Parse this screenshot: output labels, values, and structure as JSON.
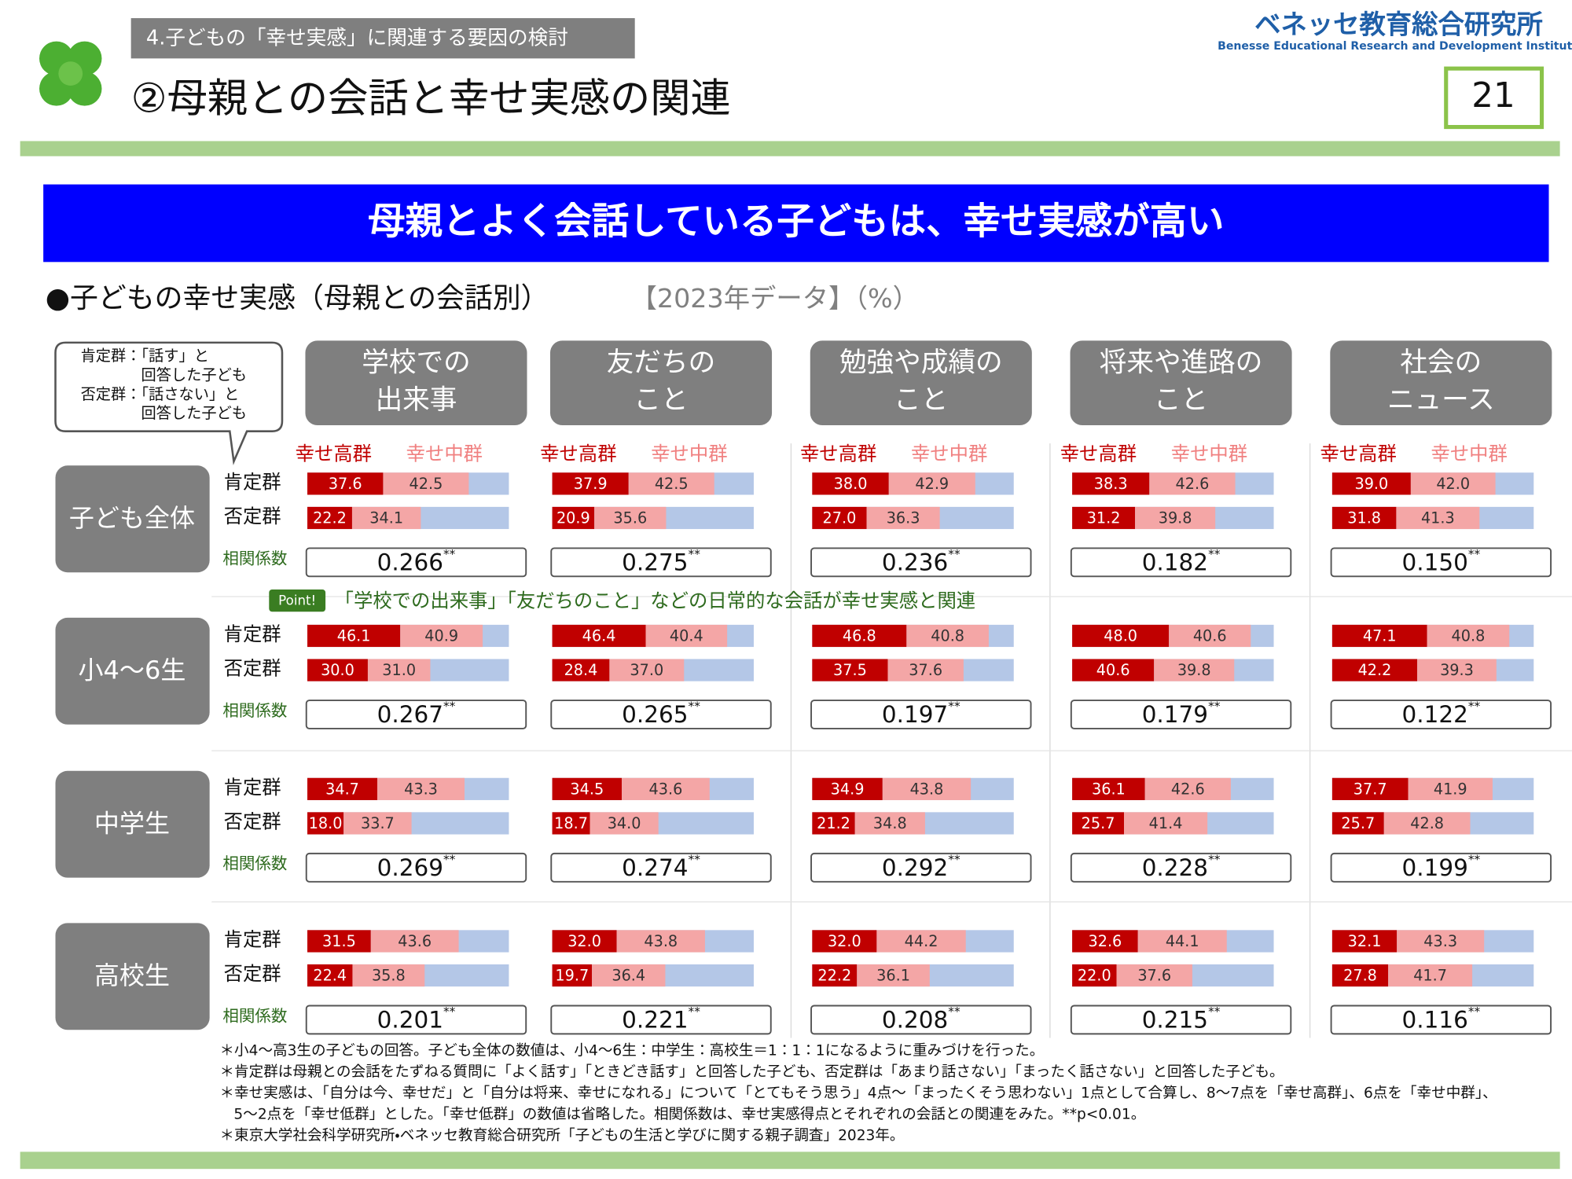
{
  "header": {
    "section": "4.子どもの「幸せ実感」に関連する要因の検討",
    "title": "②母親との会話と幸せ実感の関連",
    "logo": "ベネッセ教育総合研究所",
    "logo_en": "Benesse  Educational Research and Development Institute",
    "page": "21"
  },
  "banner": "母親とよく会話している子どもは、幸せ実感が高い",
  "chart_title": "●子どもの幸せ実感（母親との会話別）",
  "chart_subtitle": "【2023年データ】（%）",
  "bubble": [
    "肯定群：「話す」と",
    "回答した子ども",
    "否定群：「話さない」と",
    "回答した子ども"
  ],
  "topics": [
    [
      "学校での",
      "出来事"
    ],
    [
      "友だちの",
      "こと"
    ],
    [
      "勉強や成績の",
      "こと"
    ],
    [
      "将来や進路の",
      "こと"
    ],
    [
      "社会の",
      "ニュース"
    ]
  ],
  "series": [
    {
      "name": "幸せ高群",
      "color": "#c00000"
    },
    {
      "name": "幸せ中群",
      "color": "#f4a6a6"
    }
  ],
  "remainder_color": "#b4c7e7",
  "xlim": [
    0,
    100
  ],
  "row_labels": [
    "肯定群",
    "否定群"
  ],
  "corr_label": "相関係数",
  "point": {
    "tag": "Point!",
    "text": "「学校での出来事」「友だちのこと」などの日常的な会話が幸せ実感と関連"
  },
  "groups": [
    {
      "name": "子ども全体",
      "cells": [
        {
          "pos": [
            37.6,
            42.5
          ],
          "pos_labels": [
            "37.6",
            "42.5"
          ],
          "neg": [
            22.2,
            34.1
          ],
          "neg_labels": [
            "22.2",
            "34.1"
          ],
          "corr": "0.266",
          "sig": "**"
        },
        {
          "pos": [
            37.9,
            42.5
          ],
          "pos_labels": [
            "37.9",
            "42.5"
          ],
          "neg": [
            20.9,
            35.6
          ],
          "neg_labels": [
            "20.9",
            "35.6"
          ],
          "corr": "0.275",
          "sig": "**"
        },
        {
          "pos": [
            38.0,
            42.9
          ],
          "pos_labels": [
            "38.0",
            "42.9"
          ],
          "neg": [
            27.0,
            36.3
          ],
          "neg_labels": [
            "27.0",
            "36.3"
          ],
          "corr": "0.236",
          "sig": "**"
        },
        {
          "pos": [
            38.3,
            42.6
          ],
          "pos_labels": [
            "38.3",
            "42.6"
          ],
          "neg": [
            31.2,
            39.8
          ],
          "neg_labels": [
            "31.2",
            "39.8"
          ],
          "corr": "0.182",
          "sig": "**"
        },
        {
          "pos": [
            39.0,
            42.0
          ],
          "pos_labels": [
            "39.0",
            "42.0"
          ],
          "neg": [
            31.8,
            41.3
          ],
          "neg_labels": [
            "31.8",
            "41.3"
          ],
          "corr": "0.150",
          "sig": "**"
        }
      ]
    },
    {
      "name": "小4～6生",
      "cells": [
        {
          "pos": [
            46.1,
            40.9
          ],
          "pos_labels": [
            "46.1",
            "40.9"
          ],
          "neg": [
            30.0,
            31.0
          ],
          "neg_labels": [
            "30.0",
            "31.0"
          ],
          "corr": "0.267",
          "sig": "**"
        },
        {
          "pos": [
            46.4,
            40.4
          ],
          "pos_labels": [
            "46.4",
            "40.4"
          ],
          "neg": [
            28.4,
            37.0
          ],
          "neg_labels": [
            "28.4",
            "37.0"
          ],
          "corr": "0.265",
          "sig": "**"
        },
        {
          "pos": [
            46.8,
            40.8
          ],
          "pos_labels": [
            "46.8",
            "40.8"
          ],
          "neg": [
            37.5,
            37.6
          ],
          "neg_labels": [
            "37.5",
            "37.6"
          ],
          "corr": "0.197",
          "sig": "**"
        },
        {
          "pos": [
            48.0,
            40.6
          ],
          "pos_labels": [
            "48.0",
            "40.6"
          ],
          "neg": [
            40.6,
            39.8
          ],
          "neg_labels": [
            "40.6",
            "39.8"
          ],
          "corr": "0.179",
          "sig": "**"
        },
        {
          "pos": [
            47.1,
            40.8
          ],
          "pos_labels": [
            "47.1",
            "40.8"
          ],
          "neg": [
            42.2,
            39.3
          ],
          "neg_labels": [
            "42.2",
            "39.3"
          ],
          "corr": "0.122",
          "sig": "**"
        }
      ]
    },
    {
      "name": "中学生",
      "cells": [
        {
          "pos": [
            34.7,
            43.3
          ],
          "pos_labels": [
            "34.7",
            "43.3"
          ],
          "neg": [
            18.0,
            33.7
          ],
          "neg_labels": [
            "18.0",
            "33.7"
          ],
          "corr": "0.269",
          "sig": "**"
        },
        {
          "pos": [
            34.5,
            43.6
          ],
          "pos_labels": [
            "34.5",
            "43.6"
          ],
          "neg": [
            18.7,
            34.0
          ],
          "neg_labels": [
            "18.7",
            "34.0"
          ],
          "corr": "0.274",
          "sig": "**"
        },
        {
          "pos": [
            34.9,
            43.8
          ],
          "pos_labels": [
            "34.9",
            "43.8"
          ],
          "neg": [
            21.2,
            34.8
          ],
          "neg_labels": [
            "21.2",
            "34.8"
          ],
          "corr": "0.292",
          "sig": "**"
        },
        {
          "pos": [
            36.1,
            42.6
          ],
          "pos_labels": [
            "36.1",
            "42.6"
          ],
          "neg": [
            25.7,
            41.4
          ],
          "neg_labels": [
            "25.7",
            "41.4"
          ],
          "corr": "0.228",
          "sig": "**"
        },
        {
          "pos": [
            37.7,
            41.9
          ],
          "pos_labels": [
            "37.7",
            "41.9"
          ],
          "neg": [
            25.7,
            42.8
          ],
          "neg_labels": [
            "25.7",
            "42.8"
          ],
          "corr": "0.199",
          "sig": "**"
        }
      ]
    },
    {
      "name": "高校生",
      "cells": [
        {
          "pos": [
            31.5,
            43.6
          ],
          "pos_labels": [
            "31.5",
            "43.6"
          ],
          "neg": [
            22.4,
            35.8
          ],
          "neg_labels": [
            "22.4",
            "35.8"
          ],
          "corr": "0.201",
          "sig": "**"
        },
        {
          "pos": [
            32.0,
            43.8
          ],
          "pos_labels": [
            "32.0",
            "43.8"
          ],
          "neg": [
            19.7,
            36.4
          ],
          "neg_labels": [
            "19.7",
            "36.4"
          ],
          "corr": "0.221",
          "sig": "**"
        },
        {
          "pos": [
            32.0,
            44.2
          ],
          "pos_labels": [
            "32.0",
            "44.2"
          ],
          "neg": [
            22.2,
            36.1
          ],
          "neg_labels": [
            "22.2",
            "36.1"
          ],
          "corr": "0.208",
          "sig": "**"
        },
        {
          "pos": [
            32.6,
            44.1
          ],
          "pos_labels": [
            "32.6",
            "44.1"
          ],
          "neg": [
            22.0,
            37.6
          ],
          "neg_labels": [
            "22.0",
            "37.6"
          ],
          "corr": "0.215",
          "sig": "**"
        },
        {
          "pos": [
            32.1,
            43.3
          ],
          "pos_labels": [
            "32.1",
            "43.3"
          ],
          "neg": [
            27.8,
            41.7
          ],
          "neg_labels": [
            "27.8",
            "41.7"
          ],
          "corr": "0.116",
          "sig": "**"
        }
      ]
    }
  ],
  "footnotes": [
    "＊小4～高3生の子どもの回答。子ども全体の数値は、小4～6生：中学生：高校生＝1：1：1になるように重みづけを行った。",
    "＊肯定群は母親との会話をたずねる質問に「よく話す」「ときどき話す」と回答した子ども、否定群は「あまり話さない」「まったく話さない」と回答した子ども。",
    "＊幸せ実感は、「自分は今、幸せだ」と「自分は将来、幸せになれる」について「とてもそう思う」4点～「まったくそう思わない」1点として合算し、8～7点を「幸せ高群」、6点を「幸せ中群」、",
    "5～2点を「幸せ低群」とした。「幸せ低群」の数値は省略した。相関係数は、幸せ実感得点とそれぞれの会話との関連をみた。**p<0.01。",
    "＊東京大学社会科学研究所・ベネッセ教育総合研究所「子どもの生活と学びに関する親子調査」2023年。"
  ]
}
